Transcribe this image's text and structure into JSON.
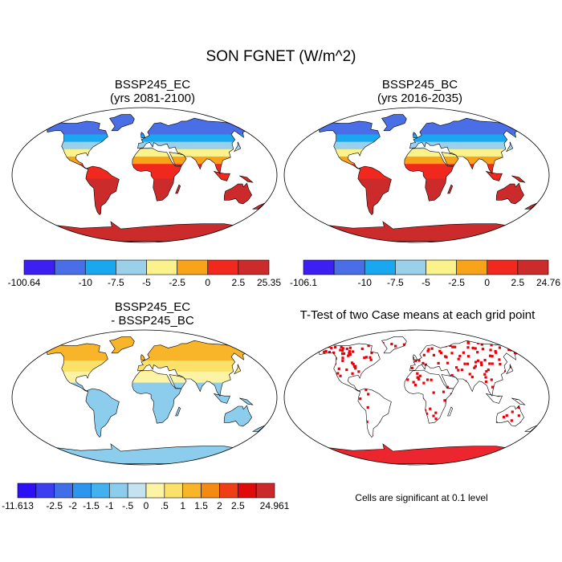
{
  "figure": {
    "title": "SON FGNET (W/m^2)",
    "note": "Cells are significant at 0.1 level"
  },
  "colors": {
    "coast": "#000000",
    "significant": "#e8000b"
  },
  "chart_data": [
    {
      "type": "heatmap",
      "title": "BSSP245_EC",
      "subtitle": "(yrs 2081-2100)",
      "projection": "robinson",
      "colorbar": {
        "labels": [
          "-100.64",
          "-10",
          "-7.5",
          "-5",
          "-2.5",
          "0",
          "2.5",
          "25.35"
        ],
        "colors": [
          "#3d1ff2",
          "#4a6ee6",
          "#19a8f0",
          "#9ad0ea",
          "#fbf28c",
          "#f8a31a",
          "#f0281e",
          "#cc2b2b"
        ],
        "label_slots": [
          0,
          2,
          3,
          4,
          5,
          6,
          7,
          8
        ]
      }
    },
    {
      "type": "heatmap",
      "title": "BSSP245_BC",
      "subtitle": "(yrs 2016-2035)",
      "projection": "robinson",
      "colorbar": {
        "labels": [
          "-106.1",
          "-10",
          "-7.5",
          "-5",
          "-2.5",
          "0",
          "2.5",
          "24.76"
        ],
        "colors": [
          "#3d1ff2",
          "#4a6ee6",
          "#19a8f0",
          "#9ad0ea",
          "#fbf28c",
          "#f8a31a",
          "#f0281e",
          "#cc2b2b"
        ],
        "label_slots": [
          0,
          2,
          3,
          4,
          5,
          6,
          7,
          8
        ]
      }
    },
    {
      "type": "heatmap",
      "title": "BSSP245_EC",
      "subtitle": "- BSSP245_BC",
      "projection": "robinson",
      "colorbar": {
        "labels": [
          "-11.613",
          "-2.5",
          "-2",
          "-1.5",
          "-1",
          "-.5",
          "0",
          ".5",
          "1",
          "1.5",
          "2",
          "2.5",
          "24.961"
        ],
        "colors": [
          "#2d10f5",
          "#3c3ff0",
          "#3f6ee8",
          "#2c95ee",
          "#43b1ee",
          "#8cccec",
          "#c4e3ef",
          "#fcf4a4",
          "#fbe06a",
          "#f8b52a",
          "#f58a12",
          "#ef3e16",
          "#df0a0a",
          "#cb2a2a"
        ],
        "label_slots": [
          0,
          2,
          3,
          4,
          5,
          6,
          7,
          8,
          9,
          10,
          11,
          12,
          14
        ]
      }
    },
    {
      "type": "heatmap",
      "title": "T-Test of two Case means at each grid point",
      "subtitle": "",
      "projection": "robinson",
      "colorbar": null
    }
  ]
}
